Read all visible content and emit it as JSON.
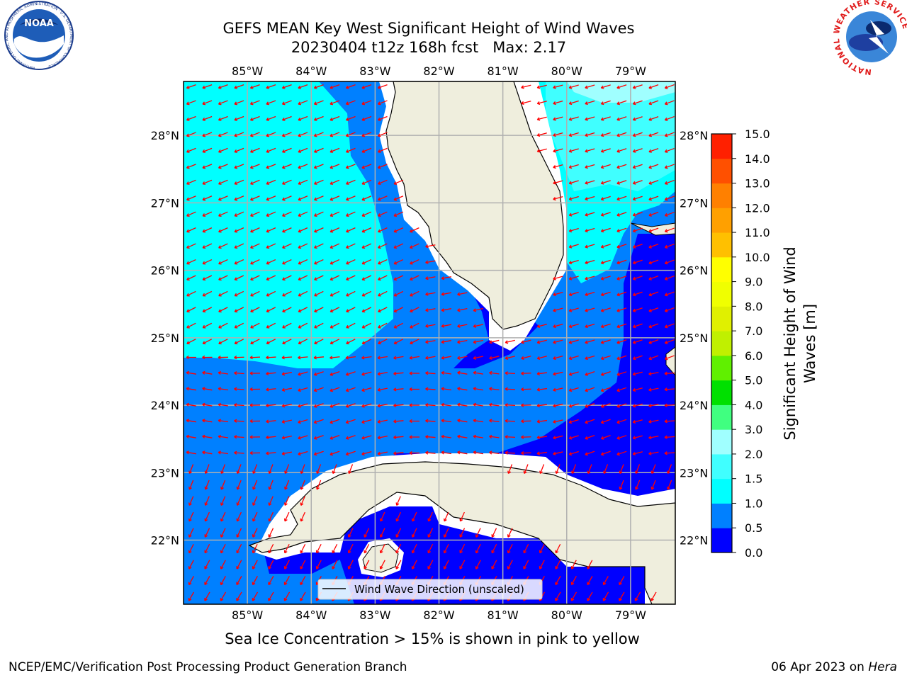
{
  "title": {
    "line1": "GEFS MEAN Key West Significant Height of Wind Waves",
    "line2": "20230404 t12z 168h fcst   Max: 2.17"
  },
  "axes": {
    "lon_labels": [
      "85°W",
      "84°W",
      "83°W",
      "82°W",
      "81°W",
      "80°W",
      "79°W"
    ],
    "lon_values": [
      -85,
      -84,
      -83,
      -82,
      -81,
      -80,
      -79
    ],
    "lat_labels": [
      "28°N",
      "27°N",
      "26°N",
      "25°N",
      "24°N",
      "23°N",
      "22°N"
    ],
    "lat_values": [
      28,
      27,
      26,
      25,
      24,
      23,
      22
    ],
    "lon_range": [
      -86.0,
      -78.3
    ],
    "lat_range": [
      21.05,
      28.8
    ]
  },
  "legend": {
    "label": "Wind Wave Direction (unscaled)",
    "placement": "bottom-center"
  },
  "colorbar": {
    "label_line1": "Significant Height of Wind",
    "label_line2": "Waves [m]",
    "ticks": [
      "0.0",
      "0.5",
      "1.0",
      "1.5",
      "2.0",
      "3.0",
      "4.0",
      "5.0",
      "6.0",
      "7.0",
      "8.0",
      "9.0",
      "10.0",
      "11.0",
      "12.0",
      "13.0",
      "14.0",
      "15.0"
    ],
    "bins": [
      {
        "range": "0.0-0.5",
        "color": "#0000ff"
      },
      {
        "range": "0.5-1.0",
        "color": "#0080ff"
      },
      {
        "range": "1.0-1.5",
        "color": "#00ffff"
      },
      {
        "range": "1.5-2.0",
        "color": "#40ffff"
      },
      {
        "range": "2.0-3.0",
        "color": "#a0ffff"
      },
      {
        "range": "3.0-4.0",
        "color": "#40ff80"
      },
      {
        "range": "4.0-5.0",
        "color": "#00e000"
      },
      {
        "range": "5.0-6.0",
        "color": "#60f000"
      },
      {
        "range": "6.0-7.0",
        "color": "#c0f000"
      },
      {
        "range": "7.0-8.0",
        "color": "#e0f000"
      },
      {
        "range": "8.0-9.0",
        "color": "#f0ff00"
      },
      {
        "range": "9.0-10.0",
        "color": "#ffff00"
      },
      {
        "range": "10.0-11.0",
        "color": "#ffc000"
      },
      {
        "range": "11.0-12.0",
        "color": "#ffa000"
      },
      {
        "range": "12.0-13.0",
        "color": "#ff8000"
      },
      {
        "range": "13.0-14.0",
        "color": "#ff5000"
      },
      {
        "range": "14.0-15.0",
        "color": "#ff2000"
      },
      {
        "range": "14.0-15.0-top",
        "color": "#ff0000"
      }
    ]
  },
  "footer": {
    "note": "Sea Ice Concentration > 15% is shown in pink to yellow",
    "left": "NCEP/EMC/Verification Post Processing Product Generation Branch",
    "date": "06 Apr 2023 on ",
    "machine": "Hera"
  },
  "logos": {
    "left_text": "NOAA",
    "left_ring": "NATIONAL OCEANIC AND ATMOSPHERIC ADMINISTRATION · U.S. DEPARTMENT OF COMMERCE",
    "right_ring": "NATIONAL WEATHER SERVICE"
  },
  "colors": {
    "land": "#efeedd",
    "coast": "#000000",
    "grid": "#b0b0b0",
    "arrow": "#ff0000",
    "wave_0_05": "#0000ff",
    "wave_05_1": "#0080ff",
    "wave_1_15": "#00ffff",
    "wave_15_2": "#40ffff",
    "wave_2_3": "#a0ffff"
  }
}
